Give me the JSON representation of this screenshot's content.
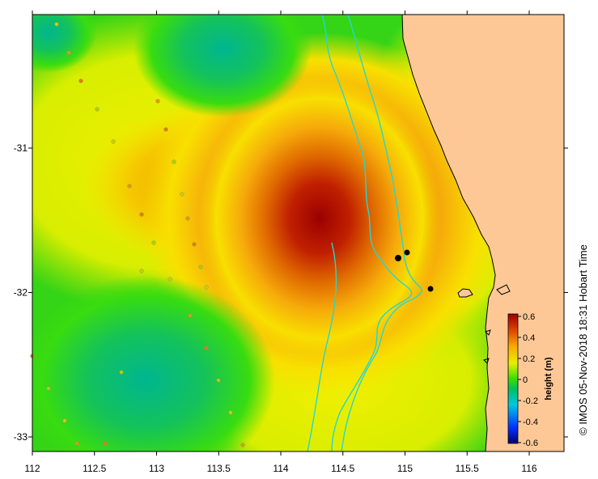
{
  "map": {
    "x_ticks": [
      "112",
      "112.5",
      "113",
      "113.5",
      "114",
      "114.5",
      "115",
      "115.5",
      "116"
    ],
    "y_ticks": [
      "-31",
      "-32",
      "-33"
    ],
    "colorbar": {
      "title": "height (m)",
      "ticks": [
        "0.6",
        "0.4",
        "0.2",
        "0",
        "-0.2",
        "-0.4",
        "-0.6"
      ],
      "min": -0.6,
      "max": 0.6
    },
    "credit": "© IMOS 05-Nov-2018 18:31 Hobart Time",
    "colors": {
      "land": "#fdc896",
      "isobath": "#22d8d0",
      "high": "#9b0000",
      "low": "#00aa8c"
    }
  }
}
